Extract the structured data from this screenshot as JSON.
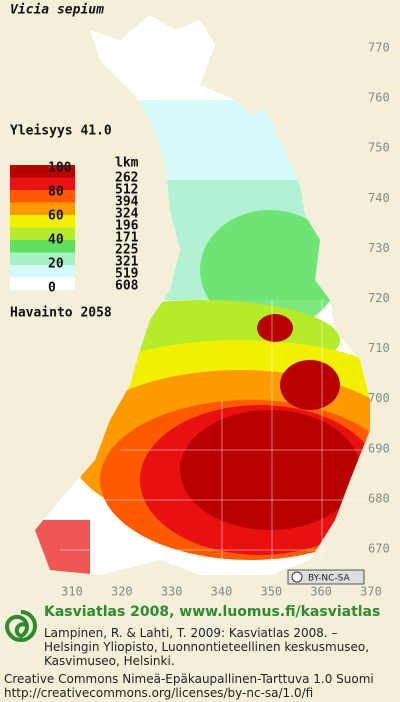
{
  "title": "Vicia sepium",
  "frequency": "Yleisyys  41.0",
  "legend": {
    "count_header": "lkm",
    "scale": [
      100,
      80,
      60,
      40,
      20,
      0
    ],
    "bins": [
      {
        "color": "#b80000",
        "count": 262
      },
      {
        "color": "#e81010",
        "count": 512
      },
      {
        "color": "#ff5a00",
        "count": 394
      },
      {
        "color": "#ff9a00",
        "count": 324
      },
      {
        "color": "#f0f000",
        "count": 196
      },
      {
        "color": "#b4ec2a",
        "count": 171
      },
      {
        "color": "#5ee05e",
        "count": 225
      },
      {
        "color": "#a8f0c8",
        "count": 321
      },
      {
        "color": "#d4fafa",
        "count": 519
      },
      {
        "color": "#ffffff",
        "count": 608
      }
    ]
  },
  "observations": "Havainto 2058",
  "map": {
    "yticks": [
      770,
      760,
      750,
      740,
      730,
      720,
      710,
      700,
      690,
      680,
      670
    ],
    "xticks": [
      310,
      320,
      330,
      340,
      350,
      360,
      370
    ],
    "license_badge": "BY-NC-SA"
  },
  "footer": {
    "heading": "Kasviatlas 2008, www.luomus.fi/kasviatlas",
    "citation": [
      "Lampinen, R. & Lahti, T. 2009: Kasviatlas 2008. –",
      "Helsingin Yliopisto, Luonnontieteellinen keskusmuseo,",
      "Kasvimuseo, Helsinki."
    ],
    "license": "Creative Commons Nimeä-Epäkaupallinen-Tarttuva 1.0 Suomi",
    "url": "http://creativecommons.org/licenses/by-nc-sa/1.0/fi"
  }
}
